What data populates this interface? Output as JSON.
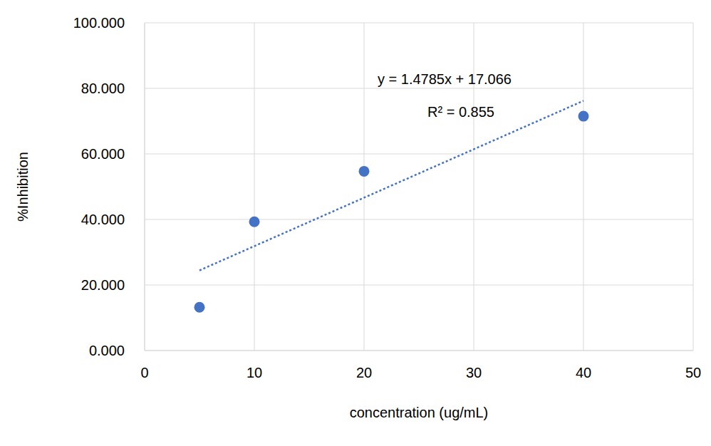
{
  "chart_data": {
    "type": "scatter",
    "x_label": "concentration (ug/mL)",
    "y_label": "%Inhibition",
    "x": [
      5,
      10,
      20,
      40
    ],
    "values": [
      13.2,
      39.3,
      54.7,
      71.5
    ],
    "color": "#4472c4",
    "marker": "circle",
    "trendline": {
      "slope": 1.4785,
      "intercept": 17.066,
      "color": "#4472c4",
      "line_style": "dotted"
    },
    "annotations": [
      "y = 1.4785x + 17.066",
      "R² = 0.855"
    ],
    "xlim": [
      0,
      50
    ],
    "xticks": [
      0,
      10,
      20,
      30,
      40,
      50
    ],
    "ylim": [
      0,
      100
    ],
    "yticks": [
      {
        "value": 0,
        "label": "0.000"
      },
      {
        "value": 20,
        "label": "20.000"
      },
      {
        "value": 40,
        "label": "40.000"
      },
      {
        "value": 60,
        "label": "60.000"
      },
      {
        "value": 80,
        "label": "80.000"
      },
      {
        "value": 100,
        "label": "100.000"
      }
    ],
    "grid": true
  }
}
